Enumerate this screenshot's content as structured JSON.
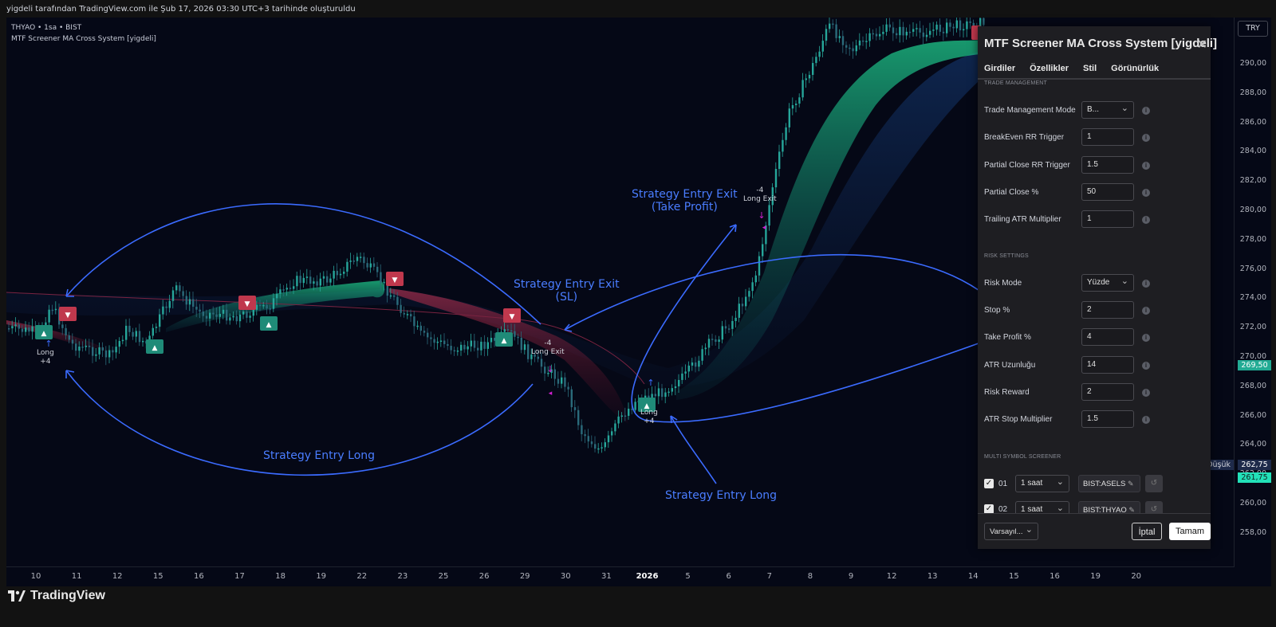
{
  "topbar": {
    "text": "yigdeli tarafından TradingView.com ile Şub 17, 2026 03:30 UTC+3 tarihinde oluşturuldu"
  },
  "chart": {
    "symbol_line": "THYAO • 1sa • BIST",
    "indicator_line": "MTF Screener MA Cross System [yigdeli]",
    "currency": "TRY",
    "price_ticks": [
      "290,00",
      "288,00",
      "286,00",
      "284,00",
      "282,00",
      "280,00",
      "278,00",
      "276,00",
      "274,00",
      "272,00",
      "270,00",
      "268,00",
      "266,00",
      "264,00",
      "262,00",
      "260,00",
      "258,00"
    ],
    "last_price": "269,50",
    "low_label": "Düşük",
    "low_price": "262,75",
    "bid_price": "261,75",
    "time_ticks": [
      "10",
      "11",
      "12",
      "15",
      "16",
      "17",
      "18",
      "19",
      "22",
      "23",
      "25",
      "26",
      "29",
      "30",
      "31",
      "2026",
      "5",
      "6",
      "7",
      "8",
      "9",
      "12",
      "13",
      "14",
      "15",
      "16",
      "19",
      "20"
    ],
    "annotations": {
      "entry_long_left": "Strategy Entry Long",
      "entry_long_right": "Strategy Entry Long",
      "exit_sl_line1": "Strategy Entry Exit",
      "exit_sl_line2": "(SL)",
      "exit_tp_line1": "Strategy Entry Exit",
      "exit_tp_line2": "(Take Profit)"
    },
    "signals": {
      "long1_a": "Long",
      "long1_b": "+4",
      "exit1_a": "-4",
      "exit1_b": "Long Exit",
      "long2_a": "Long",
      "long2_b": "+4",
      "exit2_a": "-4",
      "exit2_b": "Long Exit",
      "long3_a": "Long",
      "long3_b": "+4"
    },
    "colors": {
      "bull": "#26a69a",
      "bear": "#ef5350",
      "accent": "#4a7dff",
      "last": "#22ab94"
    }
  },
  "panel": {
    "title": "MTF Screener MA Cross System [yigdeli]",
    "tabs": [
      "Girdiler",
      "Özellikler",
      "Stil",
      "Görünürlük"
    ],
    "trade_section": "TRADE MANAGEMENT",
    "trade_rows": [
      {
        "label": "Trade Management Mode",
        "value": "B..."
      },
      {
        "label": "BreakEven RR Trigger",
        "value": "1"
      },
      {
        "label": "Partial Close RR Trigger",
        "value": "1.5"
      },
      {
        "label": "Partial Close %",
        "value": "50"
      },
      {
        "label": "Trailing ATR Multiplier",
        "value": "1"
      }
    ],
    "risk_section": "RISK SETTINGS",
    "risk_rows": [
      {
        "label": "Risk Mode",
        "value": "Yüzde"
      },
      {
        "label": "Stop %",
        "value": "2"
      },
      {
        "label": "Take Profit %",
        "value": "4"
      },
      {
        "label": "ATR Uzunluğu",
        "value": "14"
      },
      {
        "label": "Risk Reward",
        "value": "2"
      },
      {
        "label": "ATR Stop Multiplier",
        "value": "1.5"
      }
    ],
    "screener_section": "MULTI SYMBOL SCREENER",
    "screener_rows": [
      {
        "num": "01",
        "tf": "1 saat",
        "symbol": "BIST:ASELS"
      },
      {
        "num": "02",
        "tf": "1 saat",
        "symbol": "BIST:THYAO"
      }
    ],
    "defaults_label": "Varsayıl...",
    "cancel_label": "İptal",
    "ok_label": "Tamam"
  },
  "footer": {
    "brand": "TradingView"
  }
}
